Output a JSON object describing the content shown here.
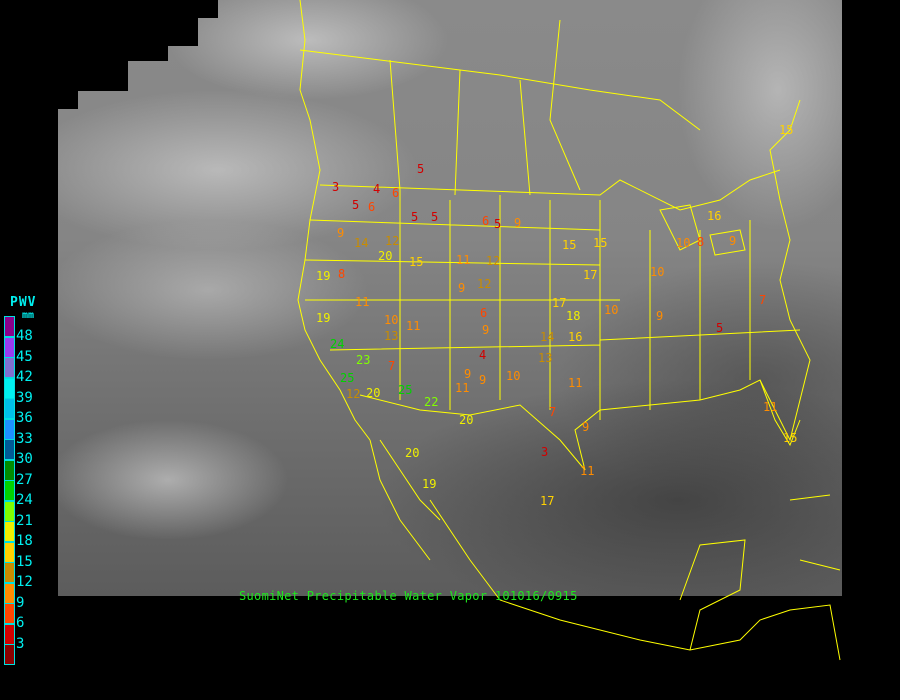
{
  "caption": "SuomiNet Precipitable Water Vapor 101016/0915",
  "legend": {
    "title": "PWV",
    "unit": "mm",
    "ticks": [
      "48",
      "45",
      "42",
      "39",
      "36",
      "33",
      "30",
      "27",
      "24",
      "21",
      "18",
      "15",
      "12",
      "9",
      "6",
      "3"
    ],
    "colors": [
      "#8b008b",
      "#9a3cf0",
      "#8070d0",
      "#00f0f0",
      "#00c0e8",
      "#1e90ff",
      "#005a96",
      "#008c00",
      "#00d200",
      "#80ff00",
      "#f0f000",
      "#ffd200",
      "#c88c00",
      "#ff8c00",
      "#ff4600",
      "#d20000",
      "#8b0000"
    ]
  },
  "border_color": "#ffff00",
  "stations": [
    "5",
    "3",
    "4",
    "6",
    "5",
    "6",
    "5",
    "5",
    "6",
    "5",
    "9",
    "9",
    "14",
    "12",
    "20",
    "15",
    "11",
    "12",
    "15",
    "15",
    "17",
    "10",
    "19",
    "8",
    "11",
    "10",
    "13",
    "11",
    "9",
    "12",
    "6",
    "9",
    "17",
    "18",
    "10",
    "9",
    "19",
    "24",
    "23",
    "7",
    "25",
    "12",
    "20",
    "25",
    "22",
    "9",
    "4",
    "11",
    "9",
    "10",
    "16",
    "14",
    "13",
    "11",
    "7",
    "9",
    "3",
    "11",
    "17",
    "20",
    "20",
    "19",
    "10",
    "8",
    "16",
    "9",
    "5",
    "7",
    "11",
    "15",
    "15"
  ]
}
